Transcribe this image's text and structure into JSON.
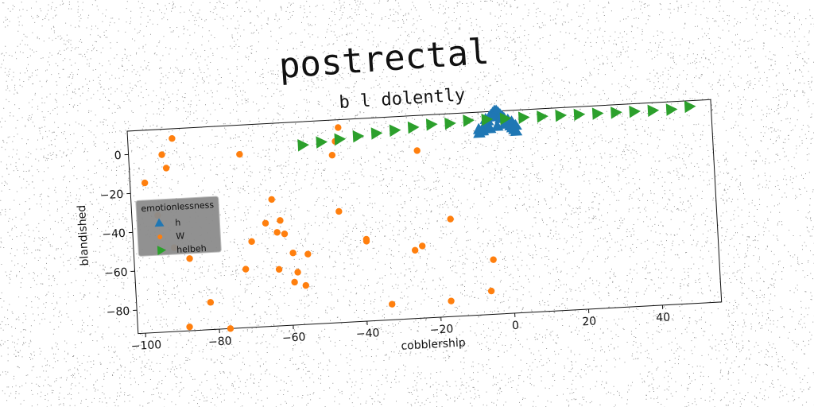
{
  "chart_data": {
    "type": "scatter",
    "title": "postrectal",
    "subtitle": "b l dolently",
    "xlabel": "cobblership",
    "ylabel": "blandished",
    "xlim": [
      -102,
      56
    ],
    "ylim": [
      -92,
      12
    ],
    "xticks": [
      -100,
      -80,
      -60,
      -40,
      -20,
      0,
      20,
      40
    ],
    "yticks": [
      0,
      -20,
      -40,
      -60,
      -80
    ],
    "grid": false,
    "legend": {
      "title": "emotionlessness",
      "placement": "center-left",
      "entries": [
        "h",
        "W",
        "helbeh"
      ]
    },
    "colors": {
      "h": "#1f77b4",
      "W": "#ff7f0e",
      "helbeh": "#2ca02c"
    },
    "series": [
      {
        "name": "h",
        "marker": "triangle-up",
        "x": [
          -7,
          -6,
          -5,
          -4.5,
          -4,
          -3.5,
          -3,
          -2.5,
          -2,
          -1.5,
          -1,
          -0.5,
          0,
          0.5,
          1,
          1.5,
          2,
          2.5,
          3,
          -6,
          -4,
          -2,
          0,
          2,
          -5,
          -3,
          -1,
          1,
          -7,
          3
        ],
        "y": [
          1,
          3,
          5,
          7,
          9,
          10,
          11,
          12,
          12,
          11,
          10,
          9,
          8,
          6,
          5,
          4,
          3,
          2,
          1,
          2,
          3,
          4,
          5,
          6,
          8,
          9,
          8,
          7,
          3,
          4
        ]
      },
      {
        "name": "W",
        "marker": "circle",
        "x": [
          -93,
          -90,
          -92,
          -98,
          -72,
          -64,
          -62,
          -47,
          -46,
          -45,
          -24,
          -91,
          -70,
          -59,
          -72,
          -66,
          -63,
          -46,
          -58,
          -55,
          -63,
          -24,
          -61,
          -59,
          -56,
          -39,
          -39,
          -33,
          -26,
          -5,
          -16,
          -17,
          -6,
          -82,
          -88,
          -77,
          -95,
          -87
        ],
        "y": [
          -1,
          7,
          -8,
          -15,
          -3,
          -27,
          -38,
          -6,
          1,
          8,
          -6,
          -49,
          -48,
          -55,
          -62,
          -39,
          -44,
          -35,
          -65,
          -56,
          -63,
          -55,
          -45,
          -70,
          -72,
          -50,
          -51,
          -84,
          -57,
          -64,
          -42,
          -84,
          -80,
          -78,
          -90,
          -92,
          -32,
          -55
        ]
      },
      {
        "name": "helbeh",
        "marker": "triangle-right",
        "x": [
          -55,
          -50,
          -45,
          -40,
          -35,
          -30,
          -25,
          -20,
          -15,
          -10,
          -5,
          0,
          5,
          10,
          15,
          20,
          25,
          30,
          35,
          40,
          45,
          50
        ],
        "y": [
          0,
          1,
          2,
          3,
          4,
          5,
          6,
          7,
          7,
          8,
          8,
          8,
          8,
          8,
          8,
          8,
          8,
          8,
          8,
          8,
          8,
          9
        ]
      }
    ]
  }
}
